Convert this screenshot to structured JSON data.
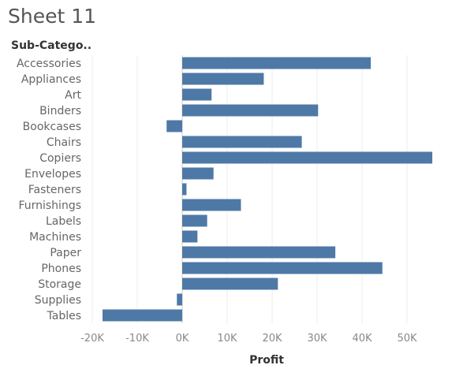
{
  "sheet": {
    "title": "Sheet 11"
  },
  "colors": {
    "bar": "#4e79a7",
    "grid": "#eeeeee",
    "zero_line": "#cccccc"
  },
  "chart_data": {
    "type": "bar",
    "orientation": "horizontal",
    "row_header": "Sub-Catego..",
    "xlabel": "Profit",
    "ylabel": "",
    "xlim": [
      -22000,
      58000
    ],
    "ticks": [
      -20000,
      -10000,
      0,
      10000,
      20000,
      30000,
      40000,
      50000
    ],
    "tick_labels": [
      "-20K",
      "-10K",
      "0K",
      "10K",
      "20K",
      "30K",
      "40K",
      "50K"
    ],
    "grid": true,
    "categories": [
      "Accessories",
      "Appliances",
      "Art",
      "Binders",
      "Bookcases",
      "Chairs",
      "Copiers",
      "Envelopes",
      "Fasteners",
      "Furnishings",
      "Labels",
      "Machines",
      "Paper",
      "Phones",
      "Storage",
      "Supplies",
      "Tables"
    ],
    "values": [
      41937,
      18138,
      6528,
      30222,
      -3473,
      26590,
      55618,
      6964,
      950,
      13059,
      5546,
      3385,
      34054,
      44516,
      21279,
      -1189,
      -17725
    ]
  }
}
